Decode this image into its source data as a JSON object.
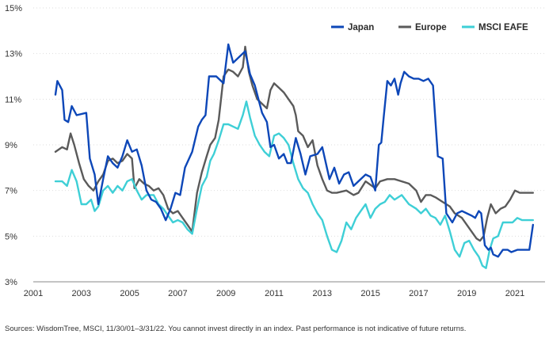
{
  "chart_data": {
    "type": "line",
    "title": "",
    "xlabel": "",
    "ylabel": "",
    "x_ticks": [
      "2001",
      "2003",
      "2005",
      "2007",
      "2009",
      "2011",
      "2013",
      "2015",
      "2017",
      "2019",
      "2021"
    ],
    "y_ticks": [
      "3%",
      "5%",
      "7%",
      "9%",
      "11%",
      "13%",
      "15%"
    ],
    "xlim": [
      2001.0,
      2022.25
    ],
    "ylim": [
      3,
      15
    ],
    "grid": "horizontal",
    "legend_position": "top-right",
    "series": [
      {
        "name": "Japan",
        "color": "#0d47b8",
        "points": [
          [
            2001.92,
            11.2
          ],
          [
            2002.0,
            11.8
          ],
          [
            2002.2,
            11.4
          ],
          [
            2002.3,
            10.1
          ],
          [
            2002.45,
            10.0
          ],
          [
            2002.6,
            10.7
          ],
          [
            2002.8,
            10.3
          ],
          [
            2003.2,
            10.4
          ],
          [
            2003.35,
            8.4
          ],
          [
            2003.55,
            7.7
          ],
          [
            2003.7,
            6.4
          ],
          [
            2003.9,
            7.5
          ],
          [
            2004.1,
            8.5
          ],
          [
            2004.3,
            8.2
          ],
          [
            2004.5,
            8.0
          ],
          [
            2004.7,
            8.5
          ],
          [
            2004.9,
            9.2
          ],
          [
            2005.1,
            8.7
          ],
          [
            2005.3,
            8.8
          ],
          [
            2005.5,
            8.1
          ],
          [
            2005.7,
            7.0
          ],
          [
            2005.9,
            6.6
          ],
          [
            2006.1,
            6.5
          ],
          [
            2006.3,
            6.2
          ],
          [
            2006.5,
            5.7
          ],
          [
            2006.7,
            6.2
          ],
          [
            2006.9,
            6.9
          ],
          [
            2007.1,
            6.8
          ],
          [
            2007.3,
            8.0
          ],
          [
            2007.6,
            8.7
          ],
          [
            2007.85,
            9.8
          ],
          [
            2008.0,
            10.1
          ],
          [
            2008.15,
            10.3
          ],
          [
            2008.3,
            12.0
          ],
          [
            2008.6,
            12.0
          ],
          [
            2008.9,
            11.7
          ],
          [
            2009.1,
            13.4
          ],
          [
            2009.3,
            12.6
          ],
          [
            2009.6,
            12.9
          ],
          [
            2009.8,
            13.1
          ],
          [
            2010.0,
            12.1
          ],
          [
            2010.2,
            11.6
          ],
          [
            2010.5,
            10.4
          ],
          [
            2010.7,
            10.0
          ],
          [
            2010.85,
            8.9
          ],
          [
            2011.0,
            9.0
          ],
          [
            2011.2,
            8.4
          ],
          [
            2011.4,
            8.6
          ],
          [
            2011.55,
            8.2
          ],
          [
            2011.7,
            8.2
          ],
          [
            2011.9,
            9.3
          ],
          [
            2012.1,
            8.6
          ],
          [
            2012.3,
            7.7
          ],
          [
            2012.5,
            8.5
          ],
          [
            2012.8,
            8.6
          ],
          [
            2013.0,
            8.9
          ],
          [
            2013.3,
            7.5
          ],
          [
            2013.5,
            8.0
          ],
          [
            2013.7,
            7.3
          ],
          [
            2013.9,
            7.7
          ],
          [
            2014.1,
            7.8
          ],
          [
            2014.3,
            7.2
          ],
          [
            2014.6,
            7.5
          ],
          [
            2014.8,
            7.7
          ],
          [
            2015.0,
            7.6
          ],
          [
            2015.2,
            7.0
          ],
          [
            2015.35,
            9.0
          ],
          [
            2015.45,
            9.1
          ],
          [
            2015.55,
            10.2
          ],
          [
            2015.7,
            11.8
          ],
          [
            2015.85,
            11.6
          ],
          [
            2016.0,
            11.9
          ],
          [
            2016.15,
            11.2
          ],
          [
            2016.25,
            11.7
          ],
          [
            2016.4,
            12.2
          ],
          [
            2016.6,
            12.0
          ],
          [
            2016.8,
            11.9
          ],
          [
            2017.0,
            11.9
          ],
          [
            2017.2,
            11.8
          ],
          [
            2017.4,
            11.9
          ],
          [
            2017.6,
            11.6
          ],
          [
            2017.8,
            8.5
          ],
          [
            2018.0,
            8.4
          ],
          [
            2018.15,
            6.0
          ],
          [
            2018.4,
            5.6
          ],
          [
            2018.6,
            6.0
          ],
          [
            2018.8,
            6.1
          ],
          [
            2019.0,
            6.0
          ],
          [
            2019.2,
            5.9
          ],
          [
            2019.35,
            5.8
          ],
          [
            2019.5,
            6.1
          ],
          [
            2019.6,
            6.0
          ],
          [
            2019.75,
            4.6
          ],
          [
            2019.9,
            4.4
          ],
          [
            2020.0,
            4.5
          ],
          [
            2020.1,
            4.2
          ],
          [
            2020.3,
            4.1
          ],
          [
            2020.5,
            4.4
          ],
          [
            2020.7,
            4.4
          ],
          [
            2020.85,
            4.3
          ],
          [
            2021.1,
            4.4
          ],
          [
            2021.4,
            4.4
          ],
          [
            2021.6,
            4.4
          ],
          [
            2021.75,
            5.5
          ]
        ]
      },
      {
        "name": "Europe",
        "color": "#5a5a5a",
        "points": [
          [
            2001.92,
            8.7
          ],
          [
            2002.2,
            8.9
          ],
          [
            2002.4,
            8.8
          ],
          [
            2002.55,
            9.5
          ],
          [
            2002.7,
            9.0
          ],
          [
            2002.9,
            8.2
          ],
          [
            2003.1,
            7.5
          ],
          [
            2003.3,
            7.2
          ],
          [
            2003.5,
            7.0
          ],
          [
            2003.7,
            7.4
          ],
          [
            2003.9,
            7.7
          ],
          [
            2004.1,
            8.3
          ],
          [
            2004.3,
            8.4
          ],
          [
            2004.5,
            8.2
          ],
          [
            2004.7,
            8.3
          ],
          [
            2004.9,
            8.6
          ],
          [
            2005.1,
            8.4
          ],
          [
            2005.2,
            7.1
          ],
          [
            2005.4,
            7.5
          ],
          [
            2005.6,
            7.3
          ],
          [
            2005.8,
            7.2
          ],
          [
            2006.0,
            7.0
          ],
          [
            2006.2,
            7.1
          ],
          [
            2006.4,
            6.8
          ],
          [
            2006.6,
            6.2
          ],
          [
            2006.8,
            6.0
          ],
          [
            2007.0,
            6.1
          ],
          [
            2007.2,
            5.8
          ],
          [
            2007.4,
            5.5
          ],
          [
            2007.6,
            5.2
          ],
          [
            2007.8,
            6.9
          ],
          [
            2008.0,
            7.8
          ],
          [
            2008.2,
            8.5
          ],
          [
            2008.35,
            9.0
          ],
          [
            2008.55,
            9.3
          ],
          [
            2008.7,
            10.1
          ],
          [
            2008.9,
            12.0
          ],
          [
            2009.1,
            12.3
          ],
          [
            2009.3,
            12.2
          ],
          [
            2009.5,
            12.0
          ],
          [
            2009.7,
            12.4
          ],
          [
            2009.8,
            13.3
          ],
          [
            2009.95,
            12.2
          ],
          [
            2010.1,
            11.6
          ],
          [
            2010.3,
            11.0
          ],
          [
            2010.5,
            10.8
          ],
          [
            2010.7,
            10.6
          ],
          [
            2010.85,
            11.4
          ],
          [
            2011.0,
            11.7
          ],
          [
            2011.2,
            11.5
          ],
          [
            2011.4,
            11.3
          ],
          [
            2011.6,
            11.0
          ],
          [
            2011.8,
            10.7
          ],
          [
            2011.9,
            10.3
          ],
          [
            2012.0,
            9.6
          ],
          [
            2012.2,
            9.4
          ],
          [
            2012.4,
            8.9
          ],
          [
            2012.6,
            9.2
          ],
          [
            2012.8,
            8.1
          ],
          [
            2013.0,
            7.5
          ],
          [
            2013.2,
            7.0
          ],
          [
            2013.4,
            6.9
          ],
          [
            2013.6,
            6.9
          ],
          [
            2014.0,
            7.0
          ],
          [
            2014.3,
            6.8
          ],
          [
            2014.5,
            6.9
          ],
          [
            2014.8,
            7.4
          ],
          [
            2015.2,
            7.1
          ],
          [
            2015.4,
            7.4
          ],
          [
            2015.7,
            7.5
          ],
          [
            2016.0,
            7.5
          ],
          [
            2016.3,
            7.4
          ],
          [
            2016.6,
            7.3
          ],
          [
            2016.9,
            7.0
          ],
          [
            2017.1,
            6.5
          ],
          [
            2017.3,
            6.8
          ],
          [
            2017.5,
            6.8
          ],
          [
            2017.7,
            6.7
          ],
          [
            2018.0,
            6.5
          ],
          [
            2018.3,
            6.3
          ],
          [
            2018.5,
            6.0
          ],
          [
            2018.8,
            5.8
          ],
          [
            2019.0,
            5.5
          ],
          [
            2019.2,
            5.2
          ],
          [
            2019.4,
            4.9
          ],
          [
            2019.55,
            4.8
          ],
          [
            2019.7,
            5.0
          ],
          [
            2019.85,
            5.8
          ],
          [
            2020.0,
            6.4
          ],
          [
            2020.2,
            6.0
          ],
          [
            2020.4,
            6.2
          ],
          [
            2020.6,
            6.3
          ],
          [
            2020.8,
            6.6
          ],
          [
            2021.0,
            7.0
          ],
          [
            2021.2,
            6.9
          ],
          [
            2021.4,
            6.9
          ],
          [
            2021.6,
            6.9
          ],
          [
            2021.75,
            6.9
          ]
        ]
      },
      {
        "name": "MSCI EAFE",
        "color": "#3ecfd6",
        "points": [
          [
            2001.92,
            7.4
          ],
          [
            2002.2,
            7.4
          ],
          [
            2002.4,
            7.2
          ],
          [
            2002.6,
            7.9
          ],
          [
            2002.8,
            7.4
          ],
          [
            2003.0,
            6.4
          ],
          [
            2003.2,
            6.4
          ],
          [
            2003.4,
            6.6
          ],
          [
            2003.55,
            6.1
          ],
          [
            2003.7,
            6.3
          ],
          [
            2003.9,
            7.0
          ],
          [
            2004.1,
            7.2
          ],
          [
            2004.3,
            6.9
          ],
          [
            2004.5,
            7.2
          ],
          [
            2004.7,
            7.0
          ],
          [
            2004.9,
            7.4
          ],
          [
            2005.1,
            7.5
          ],
          [
            2005.3,
            7.0
          ],
          [
            2005.5,
            6.6
          ],
          [
            2005.7,
            6.8
          ],
          [
            2006.0,
            6.8
          ],
          [
            2006.2,
            6.4
          ],
          [
            2006.4,
            6.2
          ],
          [
            2006.6,
            5.9
          ],
          [
            2006.8,
            5.6
          ],
          [
            2007.0,
            5.7
          ],
          [
            2007.2,
            5.6
          ],
          [
            2007.4,
            5.3
          ],
          [
            2007.6,
            5.1
          ],
          [
            2007.8,
            6.2
          ],
          [
            2008.0,
            7.2
          ],
          [
            2008.2,
            7.6
          ],
          [
            2008.35,
            8.3
          ],
          [
            2008.5,
            8.6
          ],
          [
            2008.7,
            9.2
          ],
          [
            2008.9,
            9.9
          ],
          [
            2009.1,
            9.9
          ],
          [
            2009.3,
            9.8
          ],
          [
            2009.5,
            9.7
          ],
          [
            2009.7,
            10.3
          ],
          [
            2009.85,
            10.9
          ],
          [
            2010.0,
            10.2
          ],
          [
            2010.2,
            9.4
          ],
          [
            2010.4,
            9.0
          ],
          [
            2010.6,
            8.7
          ],
          [
            2010.8,
            8.5
          ],
          [
            2011.0,
            9.4
          ],
          [
            2011.2,
            9.5
          ],
          [
            2011.4,
            9.3
          ],
          [
            2011.6,
            9.0
          ],
          [
            2011.8,
            8.2
          ],
          [
            2012.0,
            7.5
          ],
          [
            2012.2,
            7.1
          ],
          [
            2012.4,
            6.9
          ],
          [
            2012.6,
            6.4
          ],
          [
            2012.8,
            6.0
          ],
          [
            2013.0,
            5.7
          ],
          [
            2013.2,
            5.0
          ],
          [
            2013.4,
            4.4
          ],
          [
            2013.6,
            4.3
          ],
          [
            2013.8,
            4.8
          ],
          [
            2014.0,
            5.6
          ],
          [
            2014.2,
            5.3
          ],
          [
            2014.4,
            5.8
          ],
          [
            2014.6,
            6.1
          ],
          [
            2014.8,
            6.4
          ],
          [
            2015.0,
            5.8
          ],
          [
            2015.2,
            6.2
          ],
          [
            2015.4,
            6.4
          ],
          [
            2015.6,
            6.5
          ],
          [
            2015.8,
            6.8
          ],
          [
            2016.0,
            6.6
          ],
          [
            2016.3,
            6.8
          ],
          [
            2016.6,
            6.4
          ],
          [
            2016.9,
            6.2
          ],
          [
            2017.1,
            6.0
          ],
          [
            2017.3,
            6.2
          ],
          [
            2017.5,
            5.9
          ],
          [
            2017.7,
            5.8
          ],
          [
            2017.9,
            5.5
          ],
          [
            2018.1,
            5.9
          ],
          [
            2018.3,
            5.2
          ],
          [
            2018.5,
            4.4
          ],
          [
            2018.7,
            4.1
          ],
          [
            2018.9,
            4.7
          ],
          [
            2019.1,
            4.8
          ],
          [
            2019.3,
            4.4
          ],
          [
            2019.5,
            4.1
          ],
          [
            2019.65,
            3.7
          ],
          [
            2019.8,
            3.6
          ],
          [
            2019.95,
            4.4
          ],
          [
            2020.1,
            4.9
          ],
          [
            2020.3,
            5.0
          ],
          [
            2020.5,
            5.6
          ],
          [
            2020.7,
            5.6
          ],
          [
            2020.9,
            5.6
          ],
          [
            2021.1,
            5.8
          ],
          [
            2021.3,
            5.7
          ],
          [
            2021.5,
            5.7
          ],
          [
            2021.75,
            5.7
          ]
        ]
      }
    ]
  },
  "source_note": "Sources: WisdomTree, MSCI, 11/30/01–3/31/22. You cannot invest directly in an index. Past performance is not indicative of future returns."
}
